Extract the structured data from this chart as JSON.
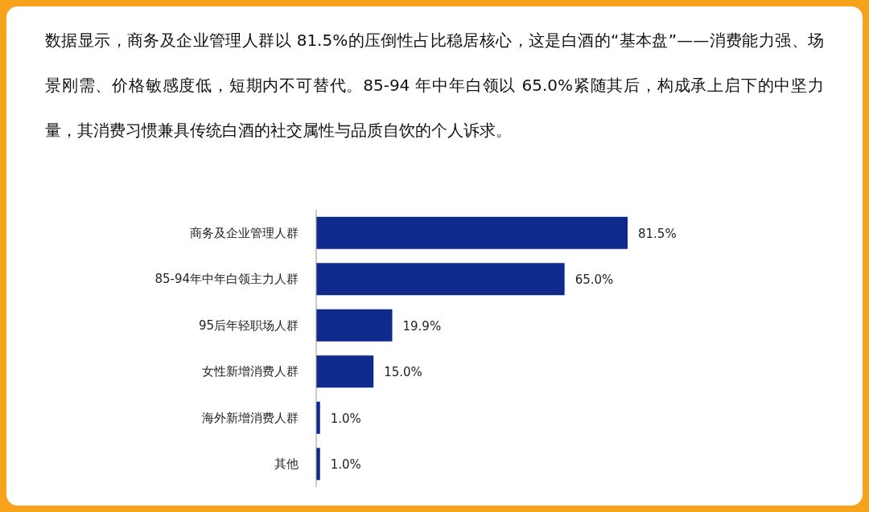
{
  "chart_data": {
    "type": "bar",
    "orientation": "horizontal",
    "title": "数据显示，商务及企业管理人群以 81.5%的压倒性占比稳居核心，这是白酒的“基本盘”——消费能力强、场景刚需、价格敏感度低，短期内不可替代。85-94 年中年白领以 65.0%紧随其后，构成承上启下的中坚力量，其消费习惯兼具传统白酒的社交属性与品质自饮的个人诉求。",
    "categories": [
      "商务及企业管理人群",
      "85-94年中年白领主力人群",
      "95后年轻职场人群",
      "女性新增消费人群",
      "海外新增消费人群",
      "其他"
    ],
    "values": [
      81.5,
      65.0,
      19.9,
      15.0,
      1.0,
      1.0
    ],
    "value_labels": [
      "81.5%",
      "65.0%",
      "19.9%",
      "15.0%",
      "1.0%",
      "1.0%"
    ],
    "color": "#0e2a8c"
  }
}
